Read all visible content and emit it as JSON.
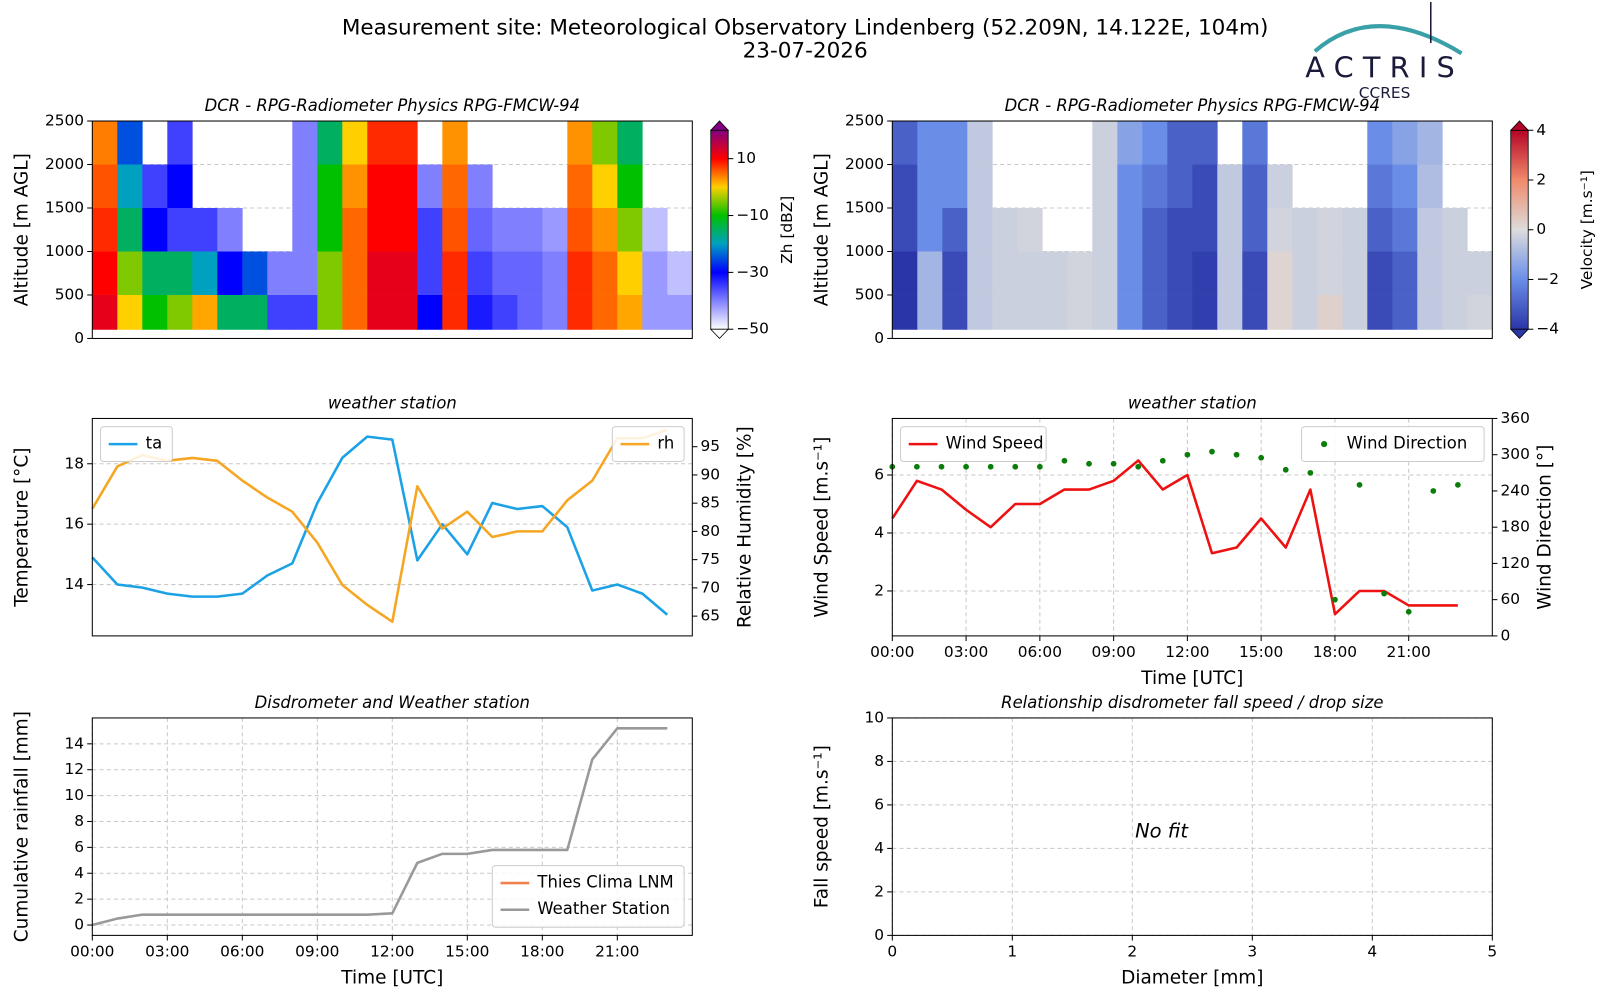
{
  "header": {
    "title": "Measurement site: Meteorological Observatory Lindenberg (52.209N, 14.122E, 104m)",
    "date": "23-07-2026",
    "logo_text": "ACTRIS",
    "logo_subtext": "CCRES"
  },
  "chart_data": [
    {
      "type": "heatmap",
      "title": "DCR - RPG-Radiometer Physics RPG-FMCW-94",
      "ylabel": "Altitude [m AGL]",
      "colorbar_label": "Zh [dBZ]",
      "xlim": [
        0,
        24
      ],
      "ylim": [
        0,
        2500
      ],
      "yticks": [
        0,
        500,
        1000,
        1500,
        2000,
        2500
      ],
      "grid": true,
      "clim": [
        -50,
        20
      ],
      "cticks": [
        {
          "value": -50,
          "label": "−50"
        },
        {
          "value": -30,
          "label": "−30"
        },
        {
          "value": -10,
          "label": "−10"
        },
        10
      ],
      "colormap": [
        "#ffffff",
        "#8080ff",
        "#0000ff",
        "#00a0c0",
        "#00c000",
        "#ffd000",
        "#ff0000",
        "#800080"
      ],
      "x_edges": [
        0,
        1,
        2,
        3,
        4,
        5,
        6,
        7,
        8,
        9,
        10,
        11,
        12,
        13,
        14,
        15,
        16,
        17,
        18,
        19,
        20,
        21,
        22,
        23,
        24
      ],
      "y_edges": [
        100,
        500,
        1000,
        1500,
        2000,
        2500
      ],
      "values": [
        [
          12,
          10,
          8,
          6,
          4
        ],
        [
          0,
          -5,
          -15,
          -20,
          -25
        ],
        [
          -10,
          -15,
          -30,
          -35,
          null
        ],
        [
          -5,
          -15,
          -35,
          -30,
          -35
        ],
        [
          2,
          -20,
          -35,
          null,
          null
        ],
        [
          -15,
          -30,
          -40,
          null,
          null
        ],
        [
          -15,
          -25,
          null,
          null,
          null
        ],
        [
          -35,
          -40,
          null,
          null,
          null
        ],
        [
          -35,
          -40,
          -40,
          -40,
          -40
        ],
        [
          -5,
          -5,
          -10,
          -10,
          -15
        ],
        [
          5,
          5,
          5,
          3,
          0
        ],
        [
          12,
          12,
          10,
          10,
          8
        ],
        [
          12,
          12,
          10,
          10,
          8
        ],
        [
          -30,
          -35,
          -35,
          -40,
          null
        ],
        [
          8,
          8,
          6,
          5,
          3
        ],
        [
          -32,
          -35,
          -38,
          -40,
          null
        ],
        [
          -35,
          -38,
          -40,
          null,
          null
        ],
        [
          -38,
          -38,
          -40,
          null,
          null
        ],
        [
          -40,
          -40,
          -42,
          null,
          null
        ],
        [
          8,
          8,
          6,
          5,
          3
        ],
        [
          5,
          5,
          3,
          0,
          -5
        ],
        [
          2,
          0,
          -5,
          -10,
          -15
        ],
        [
          -42,
          -42,
          -45,
          null,
          null
        ],
        [
          -42,
          -45,
          null,
          null,
          null
        ]
      ]
    },
    {
      "type": "heatmap",
      "title": "DCR - RPG-Radiometer Physics RPG-FMCW-94",
      "ylabel": "Altitude [m AGL]",
      "colorbar_label": "Velocity [m.s⁻¹]",
      "xlim": [
        0,
        24
      ],
      "ylim": [
        0,
        2500
      ],
      "yticks": [
        0,
        500,
        1000,
        1500,
        2000,
        2500
      ],
      "grid": true,
      "clim": [
        -4,
        4
      ],
      "cticks": [
        {
          "value": -4,
          "label": "−4"
        },
        {
          "value": -2,
          "label": "−2"
        },
        0,
        2,
        4
      ],
      "colormap": [
        "#2a35a8",
        "#6a8ee8",
        "#dcdcdc",
        "#f08a6a",
        "#b40426"
      ],
      "x_edges": [
        0,
        1,
        2,
        3,
        4,
        5,
        6,
        7,
        8,
        9,
        10,
        11,
        12,
        13,
        14,
        15,
        16,
        17,
        18,
        19,
        20,
        21,
        22,
        23,
        24
      ],
      "y_edges": [
        100,
        500,
        1000,
        1500,
        2000,
        2500
      ],
      "values": [
        [
          -4,
          -4,
          -3.5,
          -3.5,
          -3
        ],
        [
          -1,
          -1,
          -2,
          -2,
          -2
        ],
        [
          -3.5,
          -3.5,
          -3,
          -2,
          -2
        ],
        [
          -0.5,
          -0.5,
          -0.5,
          -0.5,
          -0.5
        ],
        [
          -0.3,
          -0.3,
          -0.3,
          null,
          null
        ],
        [
          -0.3,
          -0.3,
          -0.2,
          null,
          null
        ],
        [
          -0.3,
          -0.3,
          null,
          null,
          null
        ],
        [
          -0.2,
          -0.2,
          null,
          null,
          null
        ],
        [
          -0.3,
          -0.3,
          -0.3,
          -0.3,
          -0.3
        ],
        [
          -2,
          -2,
          -2,
          -2,
          -1.5
        ],
        [
          -3,
          -3,
          -3,
          -2.5,
          -2
        ],
        [
          -3.5,
          -3.5,
          -3.5,
          -3,
          -3
        ],
        [
          -3.8,
          -3.8,
          -3.5,
          -3.5,
          -3
        ],
        [
          -0.5,
          -0.5,
          -0.5,
          -0.5,
          null
        ],
        [
          -3.5,
          -3.5,
          -3,
          -3,
          -2.5
        ],
        [
          0.2,
          0.2,
          -0.2,
          -0.3,
          null
        ],
        [
          -0.3,
          -0.3,
          -0.3,
          null,
          null
        ],
        [
          0.3,
          -0.2,
          -0.2,
          null,
          null
        ],
        [
          -0.3,
          -0.3,
          -0.3,
          null,
          null
        ],
        [
          -3.5,
          -3.5,
          -3,
          -2.5,
          -2
        ],
        [
          -3,
          -3,
          -2.5,
          -2,
          -1.5
        ],
        [
          -0.5,
          -0.5,
          -0.5,
          -0.8,
          -1
        ],
        [
          -0.3,
          -0.3,
          -0.3,
          null,
          null
        ],
        [
          -0.2,
          -0.3,
          null,
          null,
          null
        ]
      ]
    },
    {
      "type": "line",
      "title": "weather station",
      "ylabel": "Temperature [°C]",
      "y2label": "Relative Humidity [%]",
      "xlim": [
        0,
        24
      ],
      "ylim": [
        12.3,
        19.5
      ],
      "yticks": [
        14,
        16,
        18
      ],
      "y2lim": [
        61.5,
        100
      ],
      "y2ticks": [
        65,
        70,
        75,
        80,
        85,
        90,
        95
      ],
      "grid": true,
      "x": [
        0,
        1,
        2,
        3,
        4,
        5,
        6,
        7,
        8,
        9,
        10,
        11,
        12,
        13,
        14,
        15,
        16,
        17,
        18,
        19,
        20,
        21,
        22,
        23
      ],
      "series": [
        {
          "name": "ta",
          "color": "#1ba1e6",
          "legend": "upper left",
          "values": [
            14.9,
            14.0,
            13.9,
            13.7,
            13.6,
            13.6,
            13.7,
            14.3,
            14.7,
            16.7,
            18.2,
            18.9,
            18.8,
            14.8,
            16.0,
            15.0,
            16.7,
            16.5,
            16.6,
            15.9,
            13.8,
            14.0,
            13.7,
            13.0
          ]
        },
        {
          "name": "rh",
          "color": "#f5a623",
          "axis": "y2",
          "legend": "upper right",
          "values": [
            84,
            91.5,
            93.5,
            92.5,
            93,
            92.5,
            89,
            86,
            83.5,
            78,
            70.5,
            67,
            64,
            88,
            80.5,
            83.5,
            79,
            80,
            80,
            85.5,
            89,
            96.5,
            96.5,
            98
          ]
        }
      ]
    },
    {
      "type": "line",
      "title": "weather station",
      "ylabel": "Wind Speed [m.s⁻¹]",
      "y2label": "Wind Direction [°]",
      "xlabel": "Time [UTC]",
      "xlim": [
        0,
        24.4
      ],
      "xticks": [
        {
          "value": 0,
          "label": "00:00"
        },
        {
          "value": 3,
          "label": "03:00"
        },
        {
          "value": 6,
          "label": "06:00"
        },
        {
          "value": 9,
          "label": "09:00"
        },
        {
          "value": 12,
          "label": "12:00"
        },
        {
          "value": 15,
          "label": "15:00"
        },
        {
          "value": 18,
          "label": "18:00"
        },
        {
          "value": 21,
          "label": "21:00"
        }
      ],
      "ylim": [
        0.45,
        7.95
      ],
      "yticks": [
        2,
        4,
        6
      ],
      "y2lim": [
        0,
        360
      ],
      "y2ticks": [
        0,
        60,
        120,
        180,
        240,
        300,
        360
      ],
      "grid": true,
      "x": [
        0,
        1,
        2,
        3,
        4,
        5,
        6,
        7,
        8,
        9,
        10,
        11,
        12,
        13,
        14,
        15,
        16,
        17,
        18,
        19,
        20,
        21,
        22,
        23
      ],
      "series": [
        {
          "name": "Wind Speed",
          "color": "#ee1111",
          "legend": "upper left",
          "values": [
            4.5,
            5.8,
            5.5,
            4.8,
            4.2,
            5.0,
            5.0,
            5.5,
            5.5,
            5.8,
            6.5,
            5.5,
            6.0,
            3.3,
            3.5,
            4.5,
            3.5,
            5.5,
            1.2,
            2.0,
            2.0,
            1.5,
            1.5,
            1.5
          ]
        },
        {
          "name": "Wind Direction",
          "color": "#0a7d0a",
          "axis": "y2",
          "type": "scatter",
          "legend": "upper right",
          "values": [
            280,
            280,
            280,
            280,
            280,
            280,
            280,
            290,
            285,
            285,
            280,
            290,
            300,
            305,
            300,
            295,
            275,
            270,
            60,
            250,
            70,
            40,
            240,
            250
          ]
        }
      ]
    },
    {
      "type": "line",
      "title": "Disdrometer and Weather station",
      "ylabel": "Cumulative rainfall [mm]",
      "xlabel": "Time [UTC]",
      "legend": "lower right",
      "xlim": [
        0,
        24
      ],
      "xticks": [
        {
          "value": 0,
          "label": "00:00"
        },
        {
          "value": 3,
          "label": "03:00"
        },
        {
          "value": 6,
          "label": "06:00"
        },
        {
          "value": 9,
          "label": "09:00"
        },
        {
          "value": 12,
          "label": "12:00"
        },
        {
          "value": 15,
          "label": "15:00"
        },
        {
          "value": 18,
          "label": "18:00"
        },
        {
          "value": 21,
          "label": "21:00"
        }
      ],
      "ylim": [
        -0.8,
        16
      ],
      "yticks": [
        0,
        2,
        4,
        6,
        8,
        10,
        12,
        14
      ],
      "grid": true,
      "x": [
        0,
        1,
        2,
        3,
        4,
        5,
        6,
        7,
        8,
        9,
        10,
        11,
        12,
        13,
        14,
        15,
        16,
        17,
        18,
        19,
        20,
        21,
        22,
        23
      ],
      "series": [
        {
          "name": "Thies Clima LNM",
          "color": "#f08050",
          "values": [
            null,
            null,
            null,
            null,
            null,
            null,
            null,
            null,
            null,
            null,
            null,
            null,
            null,
            null,
            null,
            null,
            null,
            null,
            null,
            null,
            null,
            null,
            null,
            null
          ]
        },
        {
          "name": "Weather Station",
          "color": "#999999",
          "values": [
            0,
            0.5,
            0.8,
            0.8,
            0.8,
            0.8,
            0.8,
            0.8,
            0.8,
            0.8,
            0.8,
            0.8,
            0.9,
            4.8,
            5.5,
            5.5,
            5.8,
            5.8,
            5.8,
            5.8,
            12.8,
            15.2,
            15.2,
            15.2
          ]
        }
      ]
    },
    {
      "type": "scatter",
      "title": "Relationship disdrometer fall speed / drop size",
      "ylabel": "Fall speed [m.s⁻¹]",
      "xlabel": "Diameter [mm]",
      "annotation": "No fit",
      "xlim": [
        0,
        5
      ],
      "xticks": [
        0,
        1,
        2,
        3,
        4,
        5
      ],
      "ylim": [
        0,
        10
      ],
      "yticks": [
        0,
        2,
        4,
        6,
        8,
        10
      ],
      "grid": true,
      "series": []
    }
  ]
}
